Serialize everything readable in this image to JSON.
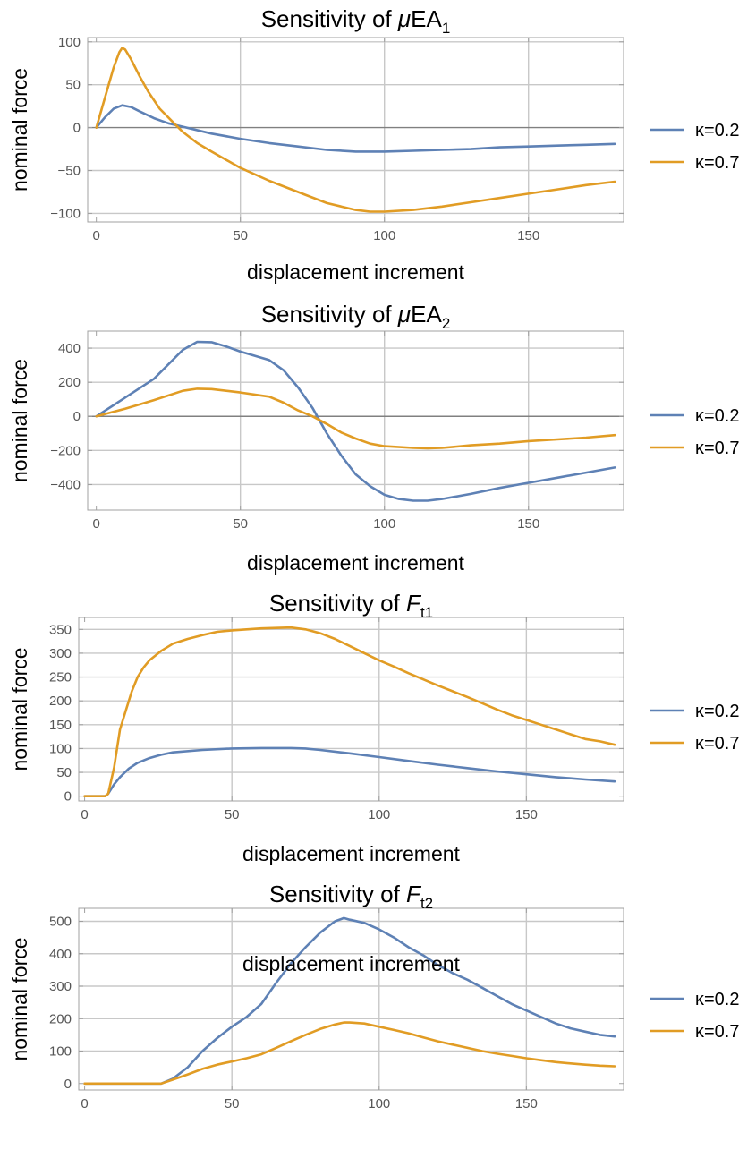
{
  "colors": {
    "k02": "#5e81b5",
    "k07": "#e19c24",
    "frame": "#a0a0a0",
    "grid": "#c8c8c8",
    "zero": "#808080"
  },
  "legend": [
    {
      "label": "κ=0.2",
      "color": "#5e81b5"
    },
    {
      "label": "κ=0.7",
      "color": "#e19c24"
    }
  ],
  "chart_data": [
    {
      "type": "line",
      "title": {
        "prefix": "Sensitivity of ",
        "italic": "μ",
        "main": "EA",
        "sub": "1"
      },
      "xlabel": "displacement increment",
      "ylabel": "nominal force",
      "xlim": [
        -3,
        183
      ],
      "ylim": [
        -110,
        105
      ],
      "xticks": [
        0,
        50,
        100,
        150
      ],
      "yticks": [
        -100,
        -50,
        0,
        50,
        100
      ],
      "xgrid": [
        50,
        100,
        150
      ],
      "ygrid": [
        -100,
        -50,
        50,
        100
      ],
      "zero_axis": true,
      "series": [
        {
          "name": "κ=0.2",
          "x": [
            0,
            3,
            6,
            9,
            12,
            15,
            20,
            25,
            30,
            40,
            50,
            60,
            70,
            80,
            90,
            100,
            110,
            120,
            130,
            140,
            150,
            160,
            170,
            180
          ],
          "y": [
            0,
            12,
            22,
            26,
            24,
            19,
            11,
            5,
            1,
            -7,
            -13,
            -18,
            -22,
            -26,
            -28,
            -28,
            -27,
            -26,
            -25,
            -23,
            -22,
            -21,
            -20,
            -19
          ]
        },
        {
          "name": "κ=0.7",
          "x": [
            0,
            3,
            6,
            8,
            9,
            10,
            12,
            15,
            18,
            22,
            27,
            30,
            35,
            40,
            50,
            60,
            70,
            80,
            90,
            95,
            100,
            110,
            120,
            130,
            140,
            150,
            160,
            170,
            180
          ],
          "y": [
            0,
            35,
            70,
            88,
            93,
            91,
            80,
            60,
            42,
            22,
            5,
            -5,
            -18,
            -28,
            -47,
            -62,
            -75,
            -88,
            -96,
            -98,
            -98,
            -96,
            -92,
            -87,
            -82,
            -77,
            -72,
            -67,
            -63
          ]
        }
      ]
    },
    {
      "type": "line",
      "title": {
        "prefix": "Sensitivity of ",
        "italic": "μ",
        "main": "EA",
        "sub": "2"
      },
      "xlabel": "displacement increment",
      "ylabel": "nominal force",
      "xlim": [
        -3,
        183
      ],
      "ylim": [
        -550,
        500
      ],
      "xticks": [
        0,
        50,
        100,
        150
      ],
      "yticks": [
        -400,
        -200,
        0,
        200,
        400
      ],
      "xgrid": [
        50,
        100,
        150
      ],
      "ygrid": [
        -400,
        -200,
        200,
        400
      ],
      "zero_axis": true,
      "series": [
        {
          "name": "κ=0.2",
          "x": [
            0,
            10,
            20,
            30,
            35,
            40,
            45,
            50,
            55,
            60,
            65,
            70,
            75,
            80,
            85,
            90,
            95,
            100,
            105,
            110,
            115,
            120,
            130,
            140,
            150,
            160,
            170,
            180
          ],
          "y": [
            0,
            110,
            220,
            390,
            437,
            435,
            410,
            380,
            355,
            330,
            270,
            170,
            50,
            -100,
            -230,
            -340,
            -410,
            -460,
            -485,
            -495,
            -495,
            -485,
            -455,
            -420,
            -390,
            -360,
            -330,
            -300
          ]
        },
        {
          "name": "κ=0.7",
          "x": [
            0,
            10,
            20,
            30,
            35,
            40,
            50,
            60,
            65,
            70,
            75,
            80,
            85,
            90,
            95,
            100,
            110,
            115,
            120,
            130,
            140,
            150,
            160,
            170,
            180
          ],
          "y": [
            0,
            45,
            95,
            150,
            162,
            160,
            140,
            115,
            80,
            35,
            0,
            -45,
            -95,
            -130,
            -160,
            -175,
            -185,
            -188,
            -185,
            -170,
            -160,
            -145,
            -135,
            -125,
            -110
          ]
        }
      ]
    },
    {
      "type": "line",
      "title": {
        "prefix": "Sensitivity of ",
        "italic": "F",
        "main": "",
        "sub": "t1"
      },
      "xlabel": "displacement increment",
      "ylabel": "nominal force",
      "xlim": [
        -2,
        183
      ],
      "ylim": [
        -10,
        375
      ],
      "xticks": [
        0,
        50,
        100,
        150
      ],
      "yticks": [
        0,
        50,
        100,
        150,
        200,
        250,
        300,
        350
      ],
      "xgrid": [
        50,
        100,
        150
      ],
      "ygrid": [
        50,
        100,
        150,
        200,
        250,
        300,
        350
      ],
      "zero_axis": false,
      "series": [
        {
          "name": "κ=0.2",
          "x": [
            0,
            7,
            8,
            10,
            12,
            15,
            18,
            22,
            26,
            30,
            40,
            50,
            60,
            70,
            75,
            80,
            90,
            100,
            110,
            120,
            130,
            140,
            150,
            160,
            170,
            180
          ],
          "y": [
            0,
            0,
            5,
            25,
            40,
            58,
            70,
            80,
            87,
            92,
            97,
            100,
            101,
            101,
            100,
            97,
            90,
            82,
            74,
            66,
            59,
            52,
            46,
            40,
            35,
            31
          ]
        },
        {
          "name": "κ=0.7",
          "x": [
            0,
            7,
            8,
            10,
            12,
            14,
            16,
            18,
            20,
            22,
            24,
            26,
            30,
            35,
            40,
            45,
            50,
            55,
            60,
            65,
            70,
            75,
            80,
            85,
            90,
            95,
            100,
            105,
            110,
            115,
            120,
            125,
            130,
            135,
            140,
            145,
            150,
            155,
            160,
            165,
            170,
            175,
            180
          ],
          "y": [
            0,
            0,
            5,
            60,
            140,
            180,
            220,
            250,
            270,
            285,
            295,
            305,
            320,
            330,
            338,
            345,
            348,
            350,
            352,
            353,
            354,
            350,
            342,
            330,
            315,
            300,
            285,
            272,
            258,
            245,
            232,
            220,
            208,
            195,
            182,
            170,
            160,
            150,
            140,
            130,
            120,
            115,
            108
          ]
        }
      ]
    },
    {
      "type": "line",
      "title": {
        "prefix": "Sensitivity of ",
        "italic": "F",
        "main": "",
        "sub": "t2"
      },
      "xlabel": "displacement increment",
      "ylabel": "nominal force",
      "xlim": [
        -2,
        183
      ],
      "ylim": [
        -20,
        540
      ],
      "xticks": [
        0,
        50,
        100,
        150
      ],
      "yticks": [
        0,
        100,
        200,
        300,
        400,
        500
      ],
      "xgrid": [
        50,
        100,
        150
      ],
      "ygrid": [
        100,
        200,
        300,
        400,
        500
      ],
      "zero_axis": false,
      "series": [
        {
          "name": "κ=0.2",
          "x": [
            0,
            26,
            30,
            35,
            40,
            45,
            50,
            55,
            60,
            65,
            70,
            75,
            80,
            85,
            88,
            90,
            95,
            100,
            105,
            110,
            115,
            120,
            125,
            130,
            135,
            140,
            145,
            150,
            155,
            160,
            165,
            170,
            175,
            180
          ],
          "y": [
            0,
            0,
            15,
            50,
            100,
            140,
            175,
            205,
            245,
            310,
            370,
            420,
            465,
            500,
            510,
            505,
            495,
            475,
            450,
            420,
            395,
            365,
            340,
            320,
            295,
            270,
            245,
            225,
            205,
            185,
            170,
            160,
            150,
            145
          ]
        },
        {
          "name": "κ=0.7",
          "x": [
            0,
            26,
            30,
            35,
            40,
            45,
            50,
            55,
            60,
            65,
            70,
            75,
            80,
            85,
            88,
            90,
            95,
            100,
            105,
            110,
            115,
            120,
            125,
            130,
            135,
            140,
            145,
            150,
            155,
            160,
            165,
            170,
            175,
            180
          ],
          "y": [
            0,
            0,
            12,
            28,
            45,
            58,
            68,
            78,
            90,
            110,
            130,
            150,
            168,
            182,
            188,
            188,
            185,
            175,
            165,
            155,
            142,
            130,
            120,
            110,
            100,
            92,
            85,
            78,
            72,
            66,
            62,
            58,
            55,
            53
          ]
        }
      ]
    }
  ]
}
